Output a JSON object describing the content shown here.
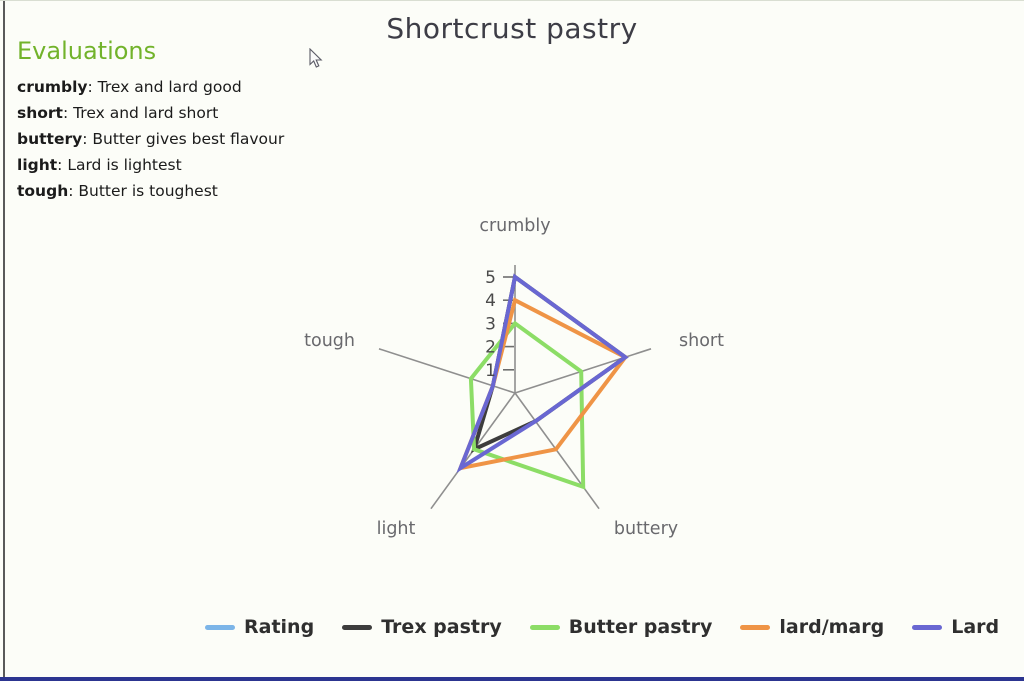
{
  "chart_data": {
    "type": "radar",
    "title": "Shortcrust pastry",
    "categories": [
      "crumbly",
      "short",
      "buttery",
      "light",
      "tough"
    ],
    "axis_range": [
      0,
      5
    ],
    "tick_labels": [
      "1",
      "2",
      "3",
      "4",
      "5"
    ],
    "grid": "spokes-only",
    "legend_position": "bottom",
    "series": [
      {
        "name": "Rating",
        "color": "#7cb5e8",
        "values": null
      },
      {
        "name": "Trex pastry",
        "color": "#3d3d3d",
        "values": [
          5,
          5,
          1.5,
          3,
          1
        ]
      },
      {
        "name": "Butter pastry",
        "color": "#8cdd66",
        "values": [
          3,
          3,
          5,
          3,
          2
        ]
      },
      {
        "name": "lard/marg",
        "color": "#ef9446",
        "values": [
          4,
          5,
          3,
          4,
          1
        ]
      },
      {
        "name": "Lard",
        "color": "#6967d2",
        "values": [
          5,
          5,
          1.5,
          4,
          1
        ]
      }
    ]
  },
  "evaluations": {
    "heading": "Evaluations",
    "items": [
      {
        "term": "crumbly",
        "text": ": Trex and lard good"
      },
      {
        "term": "short",
        "text": ": Trex and lard short"
      },
      {
        "term": "buttery",
        "text": ": Butter gives best flavour"
      },
      {
        "term": "light",
        "text": ": Lard is lightest"
      },
      {
        "term": "tough",
        "text": ": Butter is toughest"
      }
    ]
  },
  "colors": {
    "title_text": "#3d3d46",
    "heading_green": "#72b32b",
    "body_text": "#1b1b1b",
    "axis_line": "#8f8f8f",
    "tick_mark": "#6e6e6e",
    "tick_text": "#4a4a4a",
    "axis_label_text": "#69696d",
    "legend_text": "#2f2f2f",
    "left_border": "#5a5a5a",
    "bottom_bar": "#2c3590",
    "background": "#fcfdf8"
  }
}
